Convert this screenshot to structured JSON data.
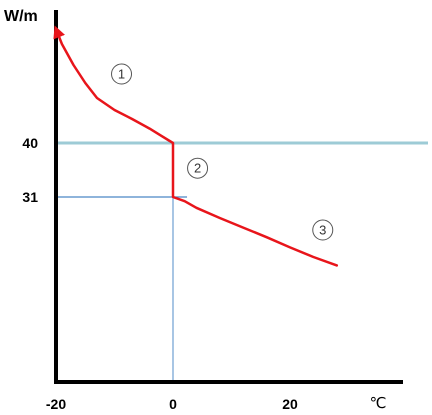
{
  "chart_data": {
    "type": "line",
    "title": "",
    "ylabel": "W/m",
    "xlabel": "℃",
    "xlim": [
      -20,
      30
    ],
    "ylim": [
      0,
      64
    ],
    "x_ticks": [
      {
        "value": -20,
        "label": "-20"
      },
      {
        "value": 0,
        "label": "0"
      },
      {
        "value": 20,
        "label": "20"
      }
    ],
    "y_ticks": [
      {
        "value": 40,
        "label": "40"
      },
      {
        "value": 31,
        "label": "31"
      }
    ],
    "series": [
      {
        "color": "#e8151b",
        "points": [
          [
            -20,
            59
          ],
          [
            -19,
            56.5
          ],
          [
            -17,
            53
          ],
          [
            -15,
            50
          ],
          [
            -13,
            47.5
          ],
          [
            -10,
            45.5
          ],
          [
            -7,
            44
          ],
          [
            -4,
            42.4
          ],
          [
            -2,
            41.2
          ],
          [
            0,
            40
          ],
          [
            0,
            31
          ],
          [
            2,
            30.3
          ],
          [
            4,
            29.2
          ],
          [
            8,
            27.5
          ],
          [
            12,
            25.9
          ],
          [
            16,
            24.3
          ],
          [
            20,
            22.6
          ],
          [
            24,
            21.0
          ],
          [
            28,
            19.6
          ]
        ]
      }
    ],
    "reference_lines": [
      {
        "orientation": "horizontal",
        "value": 40,
        "color": "#9dcbd6",
        "span": "full"
      },
      {
        "orientation": "horizontal",
        "value": 31,
        "color": "#4a86c5",
        "x_end": 2.4
      },
      {
        "orientation": "vertical",
        "value": 0,
        "color": "#6f9fd2",
        "y_end": 31
      }
    ],
    "annotations": [
      {
        "label": "1",
        "x": -8.8,
        "y": 51.5
      },
      {
        "label": "2",
        "x": 4.2,
        "y": 35.8
      },
      {
        "label": "3",
        "x": 25.6,
        "y": 25.5
      }
    ],
    "grid": false,
    "legend": "none",
    "colors": {
      "axis": "#000000",
      "curve": "#e8151b"
    }
  }
}
